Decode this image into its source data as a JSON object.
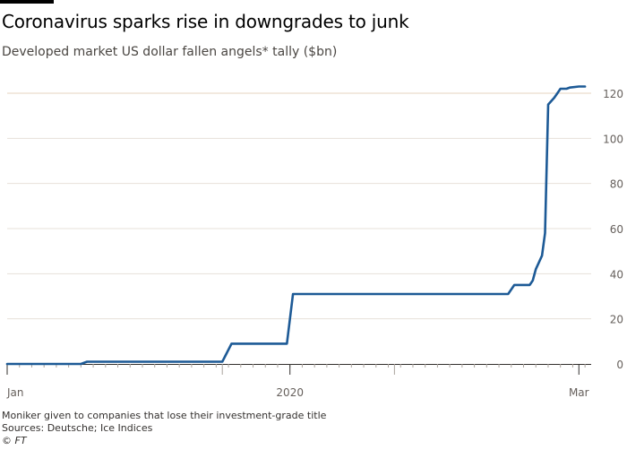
{
  "title": "Coronavirus sparks rise in downgrades to junk",
  "subtitle": "Developed market US dollar fallen angels* tally ($bn)",
  "footnote": "Moniker given to companies that lose their investment-grade title",
  "sources": "Sources: Deutsche; Ice Indices",
  "copyright": "© FT",
  "chart_data": {
    "type": "line",
    "title": "Coronavirus sparks rise in downgrades to junk",
    "subtitle": "Developed market US dollar fallen angels* tally ($bn)",
    "xlabel": "",
    "ylabel": "",
    "y_ticks": [
      0,
      20,
      40,
      60,
      80,
      100,
      120
    ],
    "y_tick_labels": [
      "0",
      "20",
      "40",
      "60",
      "80",
      "100",
      "120"
    ],
    "ylim": [
      0,
      122
    ],
    "x_ticks": [
      {
        "label": "Jan",
        "x": 0
      },
      {
        "label": "2020",
        "x": 46
      },
      {
        "label": "Mar",
        "x": 93
      }
    ],
    "xlim": [
      0,
      95
    ],
    "grid": true,
    "legend": "none",
    "colors": {
      "line": "#1d5a96",
      "grid": "#e7e1d9",
      "grid_top": "#e4d3bf",
      "axis": "#33302e"
    },
    "series": [
      {
        "name": "",
        "x": [
          0,
          12,
          13,
          35,
          36.5,
          45.5,
          46.5,
          81.5,
          82.5,
          85,
          85.5,
          86,
          87,
          87.5,
          88,
          89,
          89.5,
          90,
          91,
          91.5,
          93,
          94
        ],
        "values": [
          0,
          0,
          1,
          1,
          9,
          9,
          31,
          31,
          35,
          35,
          37,
          42,
          48,
          58,
          115,
          118,
          120,
          122,
          122,
          122.5,
          123,
          123
        ]
      }
    ]
  }
}
